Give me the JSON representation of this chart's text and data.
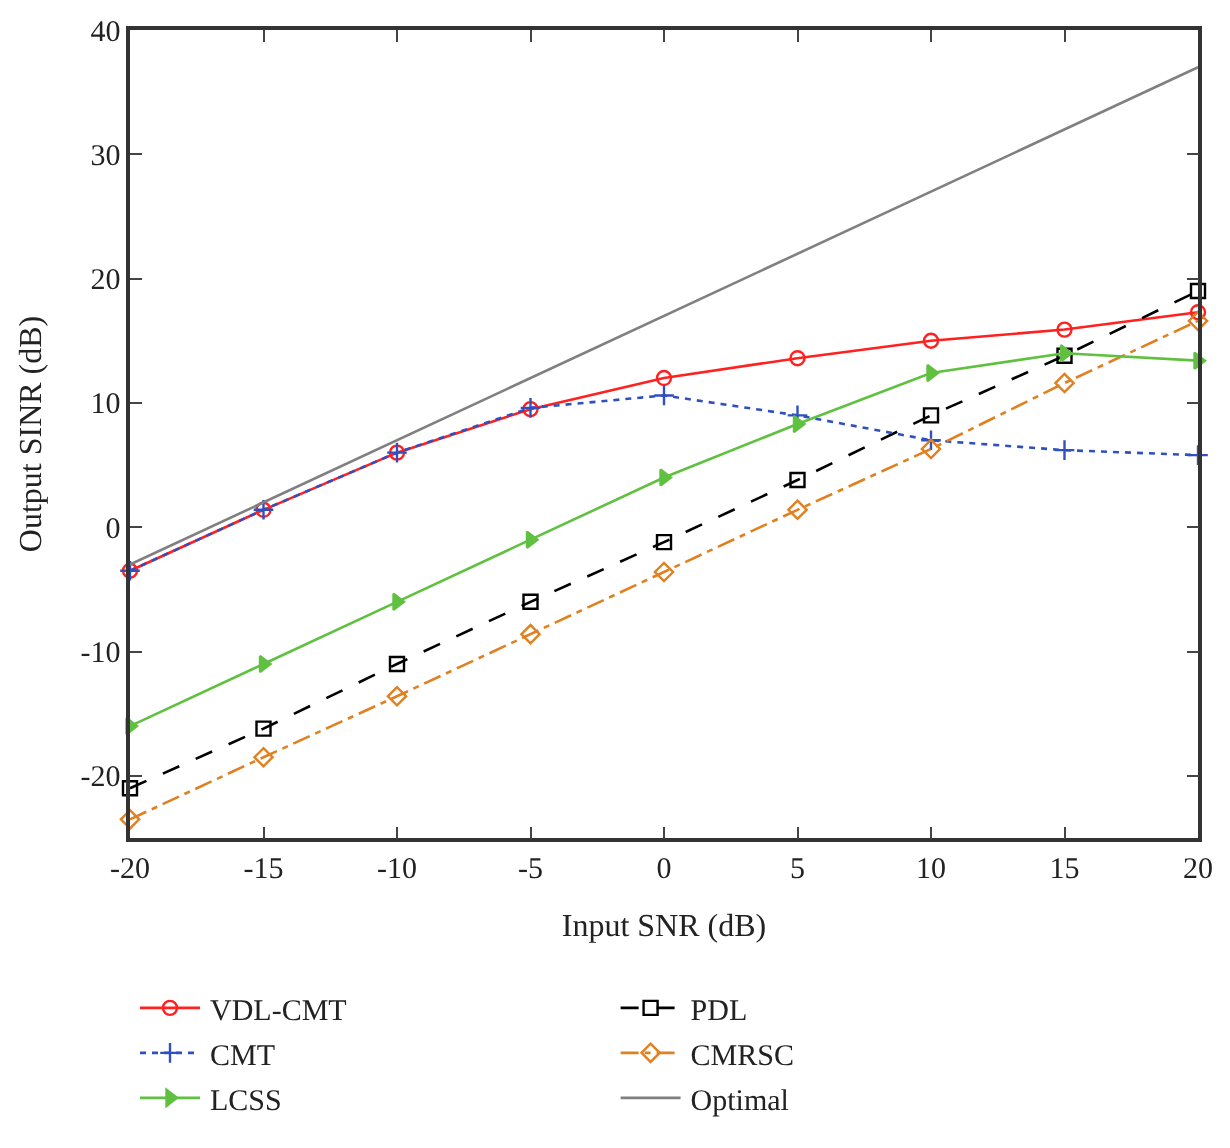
{
  "chart_data": {
    "type": "line",
    "xlabel": "Input SNR (dB)",
    "ylabel": "Output SINR (dB)",
    "x": [
      -20,
      -15,
      -10,
      -5,
      0,
      5,
      10,
      15,
      20
    ],
    "xlim": [
      -20,
      20
    ],
    "xticks": [
      -20,
      -15,
      -10,
      -5,
      0,
      5,
      10,
      15,
      20
    ],
    "ylim": [
      -25,
      40
    ],
    "yticks": [
      -20,
      -10,
      0,
      10,
      20,
      30,
      40
    ],
    "legend": "bottom",
    "series": [
      {
        "name": "VDL-CMT",
        "color": "#ff2020",
        "marker": "circle",
        "line_style": "solid",
        "values": [
          -3.5,
          1.4,
          6,
          9.5,
          12,
          13.6,
          15,
          15.9,
          17.3
        ]
      },
      {
        "name": "CMT",
        "color": "#3050c0",
        "marker": "cross",
        "line_style": "dotted",
        "values": [
          -3.5,
          1.4,
          6,
          9.6,
          10.6,
          9,
          7,
          6.2,
          5.8
        ]
      },
      {
        "name": "LCSS",
        "color": "#60c040",
        "marker": "triangle",
        "line_style": "solid",
        "values": [
          -16,
          -11,
          -6,
          -1,
          4,
          8.3,
          12.4,
          14,
          13.4
        ]
      },
      {
        "name": "PDL",
        "color": "#000000",
        "marker": "square",
        "line_style": "dashed",
        "values": [
          -21,
          -16.2,
          -11,
          -6,
          -1.2,
          3.8,
          9,
          13.8,
          19
        ]
      },
      {
        "name": "CMRSC",
        "color": "#e08020",
        "marker": "diamond",
        "line_style": "dashdot",
        "values": [
          -23.5,
          -18.5,
          -13.6,
          -8.6,
          -3.6,
          1.4,
          6.3,
          11.6,
          16.6
        ]
      },
      {
        "name": "Optimal",
        "color": "#808080",
        "marker": "none",
        "line_style": "solid",
        "x": [
          -20,
          20
        ],
        "values": [
          -3,
          37
        ]
      }
    ]
  }
}
